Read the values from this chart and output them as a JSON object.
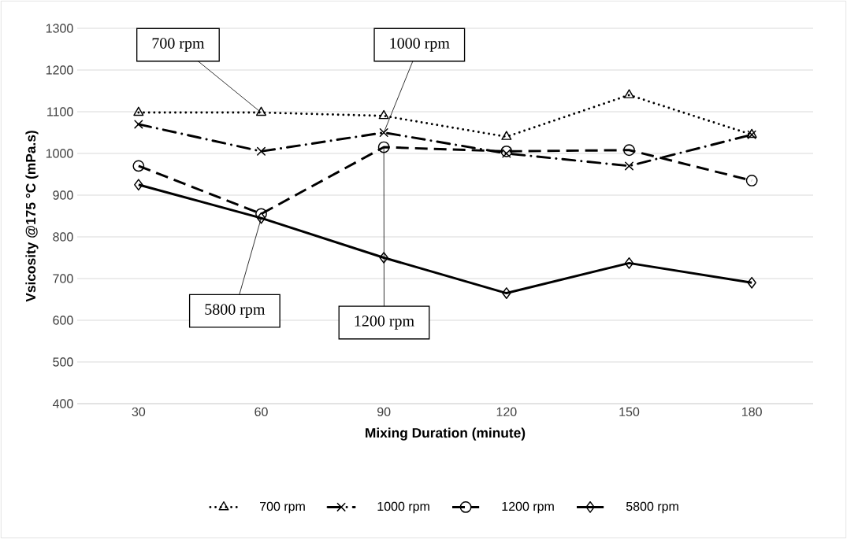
{
  "chart_data": {
    "type": "line",
    "xlabel": "Mixing Duration (minute)",
    "ylabel": "Vsicosity @175 °C (mPa.s)",
    "categories": [
      "30",
      "60",
      "90",
      "120",
      "150",
      "180"
    ],
    "ylim": [
      400,
      1300
    ],
    "yticks": [
      400,
      500,
      600,
      700,
      800,
      900,
      1000,
      1100,
      1200,
      1300
    ],
    "grid": "y",
    "legend": "bottom",
    "series": [
      {
        "name": "700 rpm",
        "color": "#000000",
        "marker": "triangle",
        "line_style": "dotted",
        "values": [
          1098,
          1098,
          1090,
          1040,
          1140,
          1045
        ]
      },
      {
        "name": "1000 rpm",
        "color": "#000000",
        "marker": "cross",
        "line_style": "dashdot",
        "values": [
          1070,
          1005,
          1050,
          1000,
          970,
          1045
        ]
      },
      {
        "name": "1200 rpm",
        "color": "#000000",
        "marker": "circle",
        "line_style": "dashed",
        "values": [
          970,
          855,
          1015,
          1005,
          1008,
          935
        ]
      },
      {
        "name": "5800 rpm",
        "color": "#000000",
        "marker": "diamond",
        "line_style": "solid",
        "values": [
          925,
          845,
          750,
          665,
          737,
          690
        ]
      }
    ],
    "annotations": [
      {
        "text": "700 rpm",
        "x": "60",
        "y": 1098
      },
      {
        "text": "1000 rpm",
        "x": "90",
        "y": 1050
      },
      {
        "text": "5800 rpm",
        "x": "60",
        "y": 845
      },
      {
        "text": "1200 rpm",
        "x": "90",
        "y": 1015
      }
    ]
  }
}
